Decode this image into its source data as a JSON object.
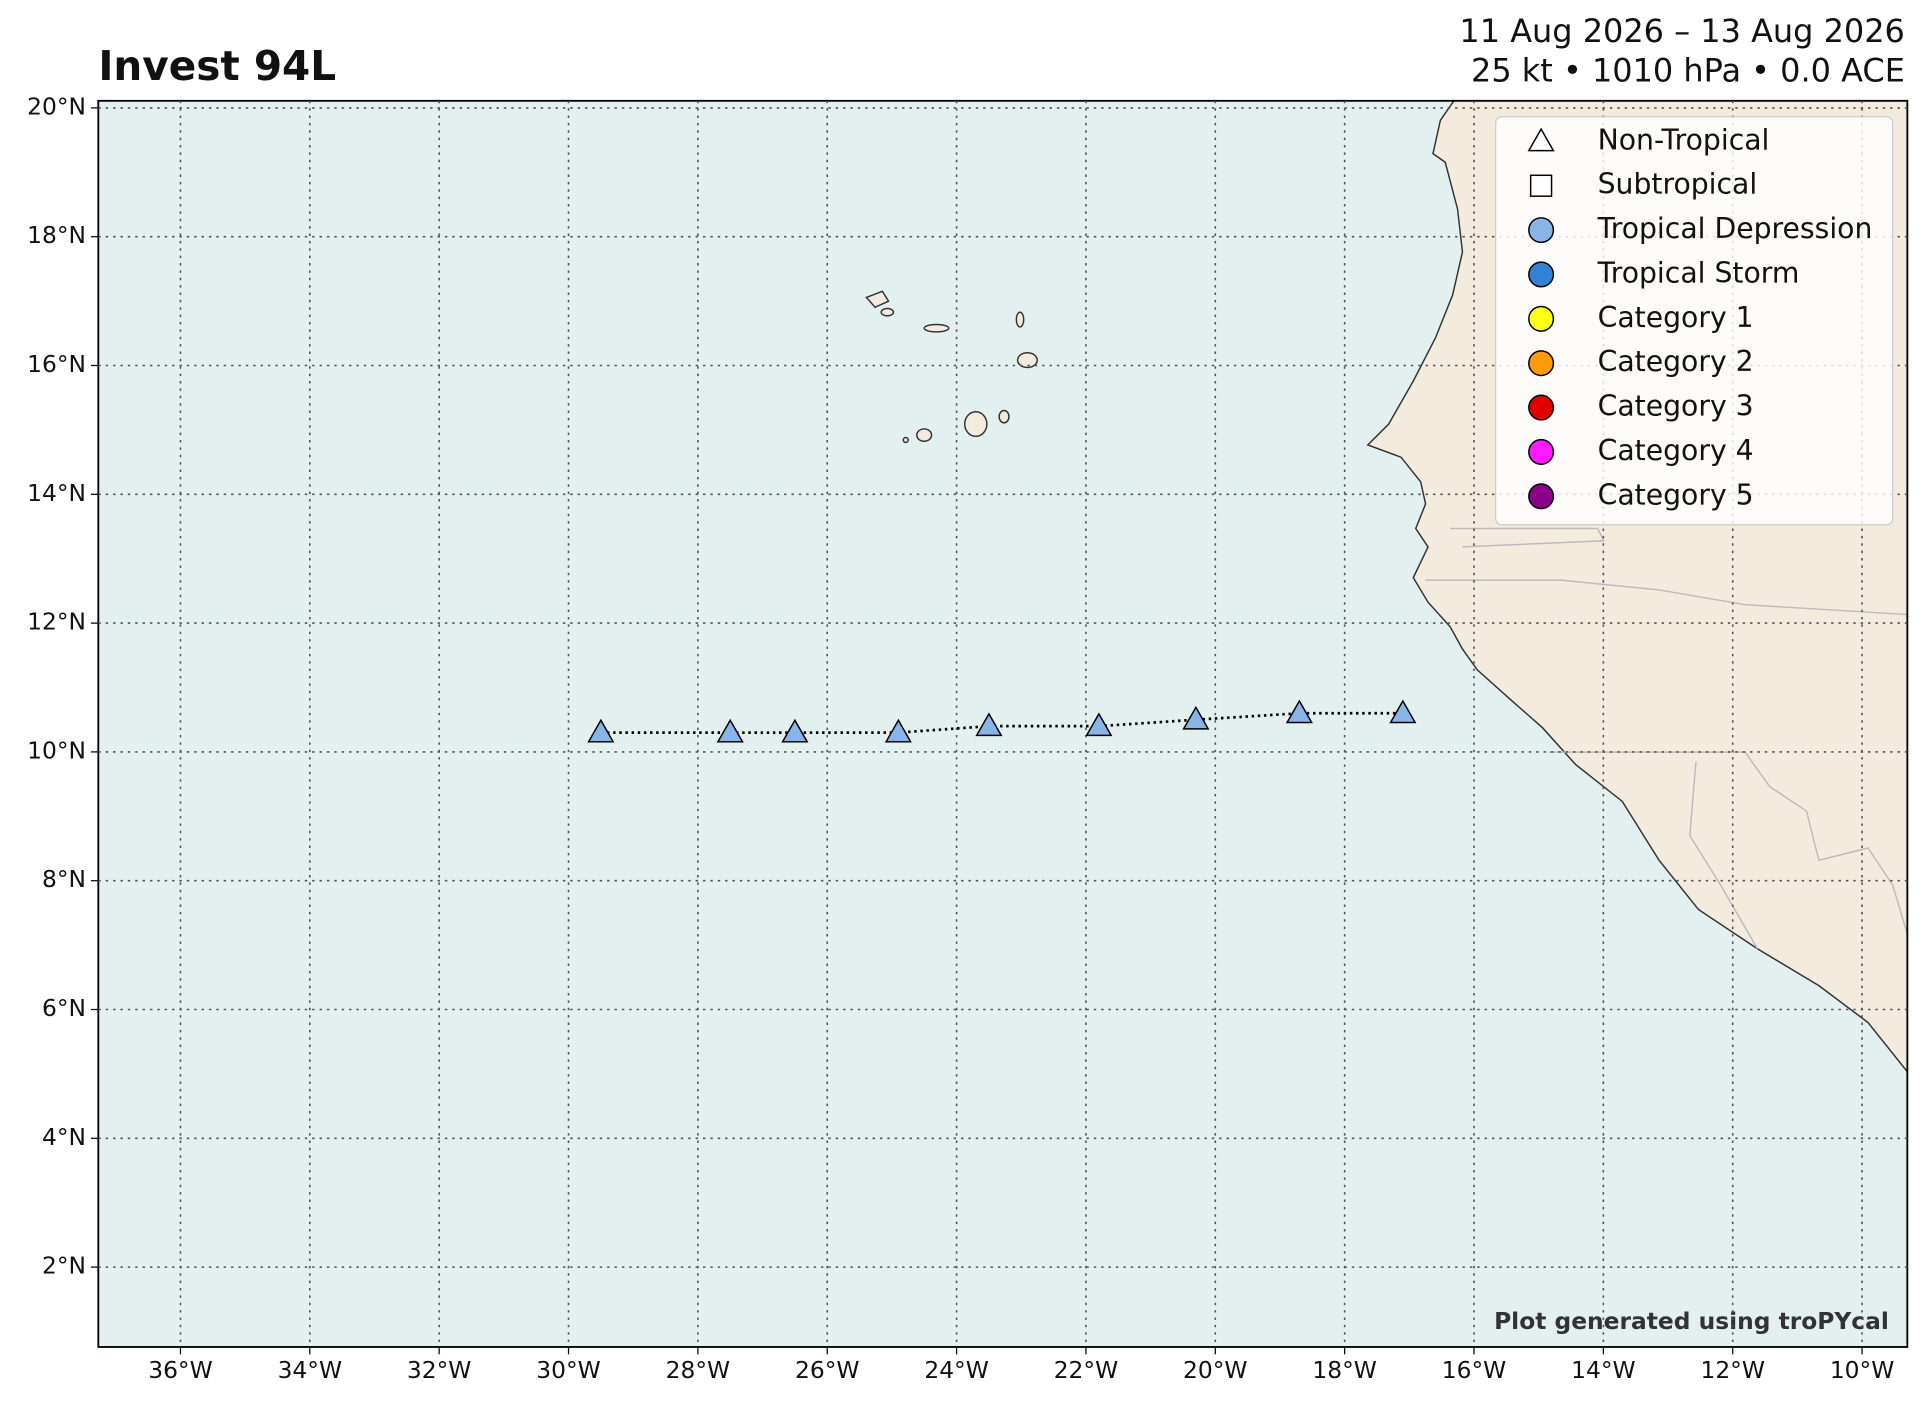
{
  "chart_data": {
    "type": "track",
    "title": "Invest 94L",
    "subtitle": [
      "11 Aug 2026 – 13 Aug 2026",
      "25 kt • 1010 hPa • 0.0 ACE"
    ],
    "credit": "Plot generated using troPYcal",
    "x": [
      -29.5,
      -27.5,
      -26.5,
      -24.9,
      -23.5,
      -21.8,
      -20.3,
      -18.7,
      -17.1
    ],
    "y": [
      10.3,
      10.3,
      10.3,
      10.3,
      10.4,
      10.4,
      10.5,
      10.6,
      10.6
    ],
    "color": "#87b5e8",
    "marker": "triangle",
    "xlim": [
      -37.27,
      -9.3
    ],
    "ylim": [
      0.76,
      20.11
    ],
    "xticks": [
      {
        "value": -36,
        "label": "36°W"
      },
      {
        "value": -34,
        "label": "34°W"
      },
      {
        "value": -32,
        "label": "32°W"
      },
      {
        "value": -30,
        "label": "30°W"
      },
      {
        "value": -28,
        "label": "28°W"
      },
      {
        "value": -26,
        "label": "26°W"
      },
      {
        "value": -24,
        "label": "24°W"
      },
      {
        "value": -22,
        "label": "22°W"
      },
      {
        "value": -20,
        "label": "20°W"
      },
      {
        "value": -18,
        "label": "18°W"
      },
      {
        "value": -16,
        "label": "16°W"
      },
      {
        "value": -14,
        "label": "14°W"
      },
      {
        "value": -12,
        "label": "12°W"
      },
      {
        "value": -10,
        "label": "10°W"
      }
    ],
    "yticks": [
      {
        "value": 2,
        "label": "2°N"
      },
      {
        "value": 4,
        "label": "4°N"
      },
      {
        "value": 6,
        "label": "6°N"
      },
      {
        "value": 8,
        "label": "8°N"
      },
      {
        "value": 10,
        "label": "10°N"
      },
      {
        "value": 12,
        "label": "12°N"
      },
      {
        "value": 14,
        "label": "14°N"
      },
      {
        "value": 16,
        "label": "16°N"
      },
      {
        "value": 18,
        "label": "18°N"
      },
      {
        "value": 20,
        "label": "20°N"
      }
    ],
    "grid": true,
    "legend_position": "upper right",
    "legend": [
      {
        "label": "Non-Tropical",
        "shape": "triangle",
        "color": "#ffffff"
      },
      {
        "label": "Subtropical",
        "shape": "square",
        "color": "#ffffff"
      },
      {
        "label": "Tropical Depression",
        "shape": "circle",
        "color": "#87b5e8"
      },
      {
        "label": "Tropical Storm",
        "shape": "circle",
        "color": "#3182d4"
      },
      {
        "label": "Category 1",
        "shape": "circle",
        "color": "#ffff1a"
      },
      {
        "label": "Category 2",
        "shape": "circle",
        "color": "#ff9a0a"
      },
      {
        "label": "Category 3",
        "shape": "circle",
        "color": "#e00000"
      },
      {
        "label": "Category 4",
        "shape": "circle",
        "color": "#ff1aff"
      },
      {
        "label": "Category 5",
        "shape": "circle",
        "color": "#8b008b"
      }
    ]
  }
}
